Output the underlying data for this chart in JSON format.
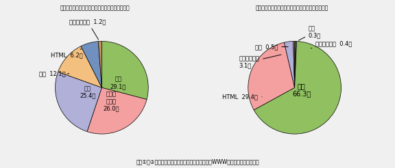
{
  "chart1_title": "【総データ量におけるファイルタイプ別の比率】",
  "chart1_labels": [
    "動画",
    "文書／\nデータ",
    "画像",
    "音声",
    "HTML",
    "不明／その他"
  ],
  "chart1_values": [
    29.1,
    26.0,
    25.4,
    12.1,
    6.2,
    1.2
  ],
  "chart1_colors": [
    "#90c060",
    "#f4a0a0",
    "#b0b0d8",
    "#f4c080",
    "#7090c0",
    "#c09060"
  ],
  "chart1_labels_outside": [
    "不明／その他  1.2％",
    "HTML  6.2％",
    "音声  12.1％"
  ],
  "chart1_labels_inside": [
    "動画\n29.1％",
    "文書／\nデータ\n26.0％",
    "画像\n25.4％"
  ],
  "chart2_title": "【総ファイル数におけるファイルタイプ別の比率】",
  "chart2_labels": [
    "動画",
    "不明／その他",
    "画像",
    "HTML",
    "文書／データ",
    "音声"
  ],
  "chart2_values": [
    0.3,
    0.4,
    66.3,
    29.4,
    3.1,
    0.5
  ],
  "chart2_colors": [
    "#303030",
    "#7090c0",
    "#90c060",
    "#f4a0a0",
    "#b0b0d8",
    "#c09060"
  ],
  "chart2_labels_outside_left": [
    "音声  0.5％",
    "文書／データ\n3.1％"
  ],
  "chart2_labels_outside_right": [
    "動画\n0.3％",
    "不明／その他  0.4％"
  ],
  "chart2_html_label": "HTML  29.4％",
  "chart2_labels_inside": [
    "画像\n66.3％"
  ],
  "caption": "図表①、②　（出典）総務省情報通信政策研究所「WWWコンテンツ統計調査」",
  "background_color": "#f0f0f0"
}
